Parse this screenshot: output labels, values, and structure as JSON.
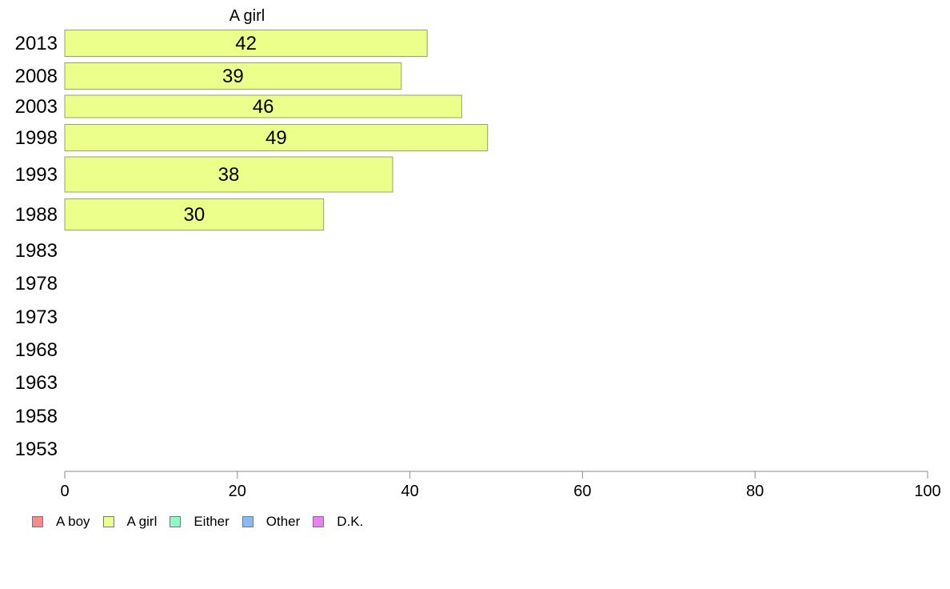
{
  "chart_data": {
    "type": "bar",
    "orientation": "horizontal",
    "categories": [
      "2013",
      "2008",
      "2003",
      "1998",
      "1993",
      "1988",
      "1983",
      "1978",
      "1973",
      "1968",
      "1963",
      "1958",
      "1953"
    ],
    "series": [
      {
        "name": "A girl",
        "color": "#ebff8a",
        "values": [
          42,
          39,
          46,
          49,
          38,
          30,
          null,
          null,
          null,
          null,
          null,
          null,
          null
        ]
      }
    ],
    "column_header": "A girl",
    "xlim": [
      0,
      100
    ],
    "xticks": [
      0,
      20,
      40,
      60,
      80,
      100
    ],
    "grid": false,
    "legend_position": "bottom-left",
    "legend": [
      {
        "label": "A boy",
        "color": "#f88a8a"
      },
      {
        "label": "A girl",
        "color": "#ebff8a"
      },
      {
        "label": "Either",
        "color": "#8affc0"
      },
      {
        "label": "Other",
        "color": "#8ab8f8"
      },
      {
        "label": "D.K.",
        "color": "#ea80f2"
      }
    ]
  }
}
